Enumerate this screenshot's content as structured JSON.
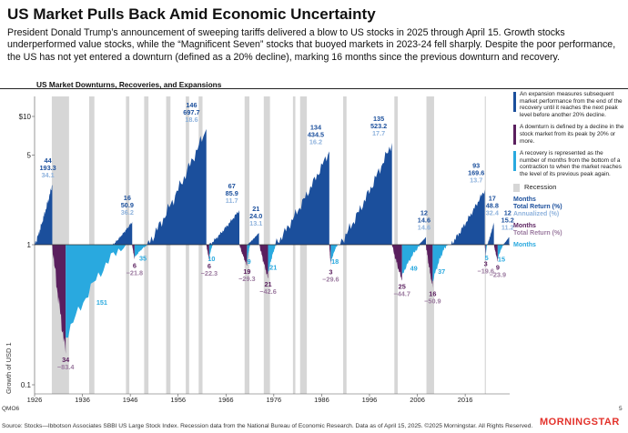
{
  "header": {
    "title": "US Market Pulls Back Amid Economic Uncertainty",
    "subtitle": "President Donald Trump’s announcement of sweeping tariffs delivered a blow to US stocks in 2025 through April 15. Growth stocks underperformed value stocks, while the “Magnificent Seven” stocks that buoyed markets in 2023-24 fell sharply. Despite the poor performance, the US has not yet entered a downturn (defined as a 20% decline), marking 16 months since the previous downturn and recovery."
  },
  "chart_data": {
    "type": "area",
    "title": "US Market Downturns, Recoveries, and Expansions",
    "ylabel": "Growth of USD 1",
    "yscale": "log",
    "ylim": [
      0.1,
      10
    ],
    "y_ticks": [
      "$10",
      "5",
      "1",
      "0.1"
    ],
    "x_ticks": [
      "1926",
      "1936",
      "1946",
      "1956",
      "1966",
      "1976",
      "1986",
      "1996",
      "2006",
      "2016"
    ],
    "recessions": [
      [
        1929.6,
        1933.2
      ],
      [
        1937.4,
        1938.5
      ],
      [
        1945.1,
        1945.8
      ],
      [
        1948.9,
        1949.8
      ],
      [
        1953.5,
        1954.4
      ],
      [
        1957.6,
        1958.3
      ],
      [
        1960.3,
        1961.1
      ],
      [
        1969.9,
        1970.9
      ],
      [
        1973.9,
        1975.2
      ],
      [
        1980.0,
        1980.5
      ],
      [
        1981.5,
        1982.9
      ],
      [
        1990.5,
        1991.2
      ],
      [
        2001.2,
        2001.9
      ],
      [
        2007.9,
        2009.5
      ],
      [
        2020.1,
        2020.3
      ]
    ],
    "expansions": [
      {
        "start": 1926.0,
        "end": 1929.7,
        "months": "44",
        "total": "193.3",
        "ann": "34.1"
      },
      {
        "start": 1942.3,
        "end": 1946.4,
        "months": "16",
        "total": "50.9",
        "ann": "36.2"
      },
      {
        "start": 1949.5,
        "end": 1961.9,
        "months": "146",
        "total": "697.7",
        "ann": "18.6"
      },
      {
        "start": 1962.5,
        "end": 1968.8,
        "months": "67",
        "total": "85.9",
        "ann": "11.7"
      },
      {
        "start": 1970.4,
        "end": 1972.9,
        "months": "21",
        "total": "24.0",
        "ann": "13.1"
      },
      {
        "start": 1976.3,
        "end": 1987.6,
        "months": "134",
        "total": "434.5",
        "ann": "16.2"
      },
      {
        "start": 1989.6,
        "end": 2000.7,
        "months": "135",
        "total": "523.2",
        "ann": "17.7"
      },
      {
        "start": 2006.2,
        "end": 2007.8,
        "months": "12",
        "total": "14.6",
        "ann": "14.6"
      },
      {
        "start": 2012.9,
        "end": 2020.1,
        "months": "93",
        "total": "169.6",
        "ann": "13.7"
      },
      {
        "start": 2020.6,
        "end": 2022.0,
        "months": "17",
        "total": "48.8",
        "ann": "32.4"
      },
      {
        "start": 2023.9,
        "end": 2025.2,
        "months": "12",
        "total": "15.2",
        "ann": "11.2"
      }
    ],
    "downturns": [
      {
        "start": 1929.7,
        "end": 1932.5,
        "months": "34",
        "total": "−83.4"
      },
      {
        "start": 1946.4,
        "end": 1946.9,
        "months": "6",
        "total": "−21.8"
      },
      {
        "start": 1961.9,
        "end": 1962.5,
        "months": "6",
        "total": "−22.3"
      },
      {
        "start": 1968.8,
        "end": 1970.4,
        "months": "19",
        "total": "−29.3"
      },
      {
        "start": 1973.0,
        "end": 1974.8,
        "months": "21",
        "total": "−42.6"
      },
      {
        "start": 1987.6,
        "end": 1987.9,
        "months": "3",
        "total": "−29.6"
      },
      {
        "start": 2000.7,
        "end": 2002.8,
        "months": "25",
        "total": "−44.7"
      },
      {
        "start": 2007.8,
        "end": 2009.2,
        "months": "16",
        "total": "−50.9"
      },
      {
        "start": 2020.1,
        "end": 2020.3,
        "months": "3",
        "total": "−19.6"
      },
      {
        "start": 2022.0,
        "end": 2022.8,
        "months": "9",
        "total": "−23.9"
      }
    ],
    "recoveries": [
      {
        "start": 1932.5,
        "end": 1945.1,
        "months": "151"
      },
      {
        "start": 1946.9,
        "end": 1949.8,
        "months": "35"
      },
      {
        "start": 1962.5,
        "end": 1963.3,
        "months": "10"
      },
      {
        "start": 1970.4,
        "end": 1971.1,
        "months": "9"
      },
      {
        "start": 1974.8,
        "end": 1976.6,
        "months": "21"
      },
      {
        "start": 1987.9,
        "end": 1989.4,
        "months": "18"
      },
      {
        "start": 2002.8,
        "end": 2006.9,
        "months": "49"
      },
      {
        "start": 2009.2,
        "end": 2012.3,
        "months": "37"
      },
      {
        "start": 2020.3,
        "end": 2020.6,
        "months": "5"
      },
      {
        "start": 2022.8,
        "end": 2024.1,
        "months": "15"
      }
    ]
  },
  "legend": {
    "expansion": "An expansion measures subsequent market performance from the end of the recovery until it reaches the next peak level before another 20% decline.",
    "downturn": "A downturn is defined by a decline in the stock market from its peak by 20% or more.",
    "recovery": "A recovery is represented as the number of months from the bottom of a contraction to when the market reaches the level of its previous peak again.",
    "recession": "Recession",
    "exp_key": {
      "months": "Months",
      "total": "Total Return (%)",
      "ann": "Annualized (%)"
    },
    "down_key": {
      "months": "Months",
      "total": "Total Return (%)"
    },
    "rec_key": {
      "months": "Months"
    }
  },
  "colors": {
    "expansion": "#1b4f9c",
    "expansion_annualized": "#8fb3dd",
    "downturn": "#5a1f5e",
    "downturn_total": "#9c7ba0",
    "recovery": "#29a9df",
    "recession": "#d6d6d6",
    "brand": "#e3322b"
  },
  "footer": {
    "code": "QMO6",
    "page": "5",
    "source": "Source: Stocks—Ibbotson Associates SBBI US Large Stock Index. Recession data from the National Bureau of Economic Research. Data as of April 15, 2025. ©2025 Morningstar. All Rights Reserved.",
    "logo": "MORNINGSTAR"
  }
}
